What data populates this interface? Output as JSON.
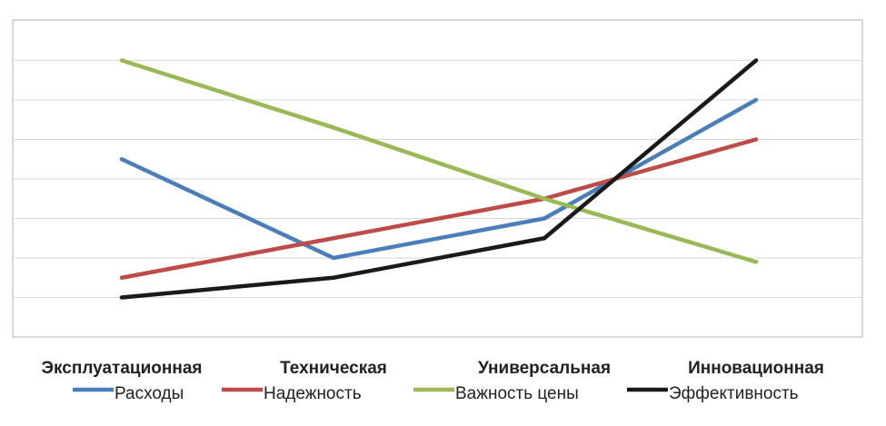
{
  "chart_data": {
    "type": "line",
    "categories": [
      "Эксплуатационная",
      "Техническая",
      "Универсальная",
      "Инновационная"
    ],
    "ylim": [
      0,
      8
    ],
    "grid": true,
    "legend_position": "bottom",
    "series": [
      {
        "name": "Расходы",
        "color": "#4a7ebb",
        "values": [
          4.5,
          2.0,
          3.0,
          6.0
        ]
      },
      {
        "name": "Надежность",
        "color": "#be4b48",
        "values": [
          1.5,
          2.5,
          3.5,
          5.0
        ]
      },
      {
        "name": "Важность цены",
        "color": "#98b954",
        "values": [
          7.0,
          5.3,
          3.5,
          1.9
        ]
      },
      {
        "name": "Эффективность",
        "color": "#1a1a1a",
        "values": [
          1.0,
          1.5,
          2.5,
          7.0
        ]
      }
    ]
  }
}
